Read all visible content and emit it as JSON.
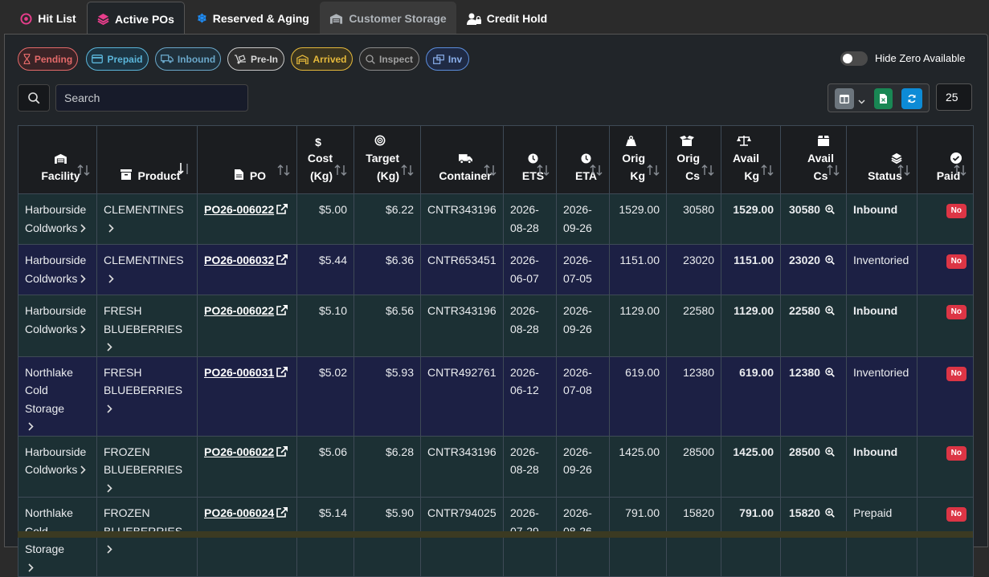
{
  "tabs": [
    {
      "label": "Hit List"
    },
    {
      "label": "Active POs"
    },
    {
      "label": "Reserved & Aging"
    },
    {
      "label": "Customer Storage"
    },
    {
      "label": "Credit Hold"
    }
  ],
  "filters": [
    {
      "label": "Pending",
      "color": "#e46a6a"
    },
    {
      "label": "Prepaid",
      "color": "#5bb5d9"
    },
    {
      "label": "Inbound",
      "color": "#6aa7c9"
    },
    {
      "label": "Pre-In",
      "color": "#c8c8c8"
    },
    {
      "label": "Arrived",
      "color": "#e5b93b"
    },
    {
      "label": "Inspect",
      "color": "#9a9a9a"
    },
    {
      "label": "Inv",
      "color": "#5b8ddc"
    }
  ],
  "hide_zero": {
    "label": "Hide Zero Available",
    "on": false
  },
  "search": {
    "placeholder": "Search"
  },
  "page_size": "25",
  "columns": [
    {
      "l1": "",
      "l2": "Facility"
    },
    {
      "l1": "",
      "l2": "Product"
    },
    {
      "l1": "",
      "l2": "PO"
    },
    {
      "l1": "Cost",
      "l2": "(Kg)"
    },
    {
      "l1": "Target",
      "l2": "(Kg)"
    },
    {
      "l1": "",
      "l2": "Container"
    },
    {
      "l1": "",
      "l2": "ETS"
    },
    {
      "l1": "",
      "l2": "ETA"
    },
    {
      "l1": "Orig",
      "l2": "Kg"
    },
    {
      "l1": "Orig",
      "l2": "Cs"
    },
    {
      "l1": "Avail",
      "l2": "Kg"
    },
    {
      "l1": "Avail",
      "l2": "Cs"
    },
    {
      "l1": "",
      "l2": "Status"
    },
    {
      "l1": "",
      "l2": "Paid"
    }
  ],
  "rows": [
    {
      "facility_a": "Harbourside",
      "facility_b": "Coldworks",
      "product_a": "CLEMENTINES",
      "product_b": "",
      "po": "PO26-006022",
      "cost": "$5.00",
      "target": "$6.22",
      "container": "CNTR343196",
      "ets_a": "2026-",
      "ets_b": "08-28",
      "eta_a": "2026-",
      "eta_b": "09-26",
      "orig_kg": "1529.00",
      "orig_cs": "30580",
      "avail_kg": "1529.00",
      "avail_cs": "30580",
      "status": "Inbound",
      "status_bold": true,
      "paid": "No"
    },
    {
      "facility_a": "Harbourside",
      "facility_b": "Coldworks",
      "product_a": "CLEMENTINES",
      "product_b": "",
      "po": "PO26-006032",
      "cost": "$5.44",
      "target": "$6.36",
      "container": "CNTR653451",
      "ets_a": "2026-",
      "ets_b": "06-07",
      "eta_a": "2026-",
      "eta_b": "07-05",
      "orig_kg": "1151.00",
      "orig_cs": "23020",
      "avail_kg": "1151.00",
      "avail_cs": "23020",
      "status": "Inventoried",
      "status_bold": false,
      "paid": "No"
    },
    {
      "facility_a": "Harbourside",
      "facility_b": "Coldworks",
      "product_a": "FRESH",
      "product_b": "BLUEBERRIES",
      "po": "PO26-006022",
      "cost": "$5.10",
      "target": "$6.56",
      "container": "CNTR343196",
      "ets_a": "2026-",
      "ets_b": "08-28",
      "eta_a": "2026-",
      "eta_b": "09-26",
      "orig_kg": "1129.00",
      "orig_cs": "22580",
      "avail_kg": "1129.00",
      "avail_cs": "22580",
      "status": "Inbound",
      "status_bold": true,
      "paid": "No"
    },
    {
      "facility_a": "Northlake",
      "facility_b": "Cold Storage",
      "product_a": "FRESH",
      "product_b": "BLUEBERRIES",
      "po": "PO26-006031",
      "cost": "$5.02",
      "target": "$5.93",
      "container": "CNTR492761",
      "ets_a": "2026-",
      "ets_b": "06-12",
      "eta_a": "2026-",
      "eta_b": "07-08",
      "orig_kg": "619.00",
      "orig_cs": "12380",
      "avail_kg": "619.00",
      "avail_cs": "12380",
      "status": "Inventoried",
      "status_bold": false,
      "paid": "No"
    },
    {
      "facility_a": "Harbourside",
      "facility_b": "Coldworks",
      "product_a": "FROZEN",
      "product_b": "BLUEBERRIES",
      "po": "PO26-006022",
      "cost": "$5.06",
      "target": "$6.28",
      "container": "CNTR343196",
      "ets_a": "2026-",
      "ets_b": "08-28",
      "eta_a": "2026-",
      "eta_b": "09-26",
      "orig_kg": "1425.00",
      "orig_cs": "28500",
      "avail_kg": "1425.00",
      "avail_cs": "28500",
      "status": "Inbound",
      "status_bold": true,
      "paid": "No"
    },
    {
      "facility_a": "Northlake",
      "facility_b": "Cold Storage",
      "product_a": "FROZEN",
      "product_b": "BLUEBERRIES",
      "po": "PO26-006024",
      "cost": "$5.14",
      "target": "$5.90",
      "container": "CNTR794025",
      "ets_a": "2026-",
      "ets_b": "07-29",
      "eta_a": "2026-",
      "eta_b": "08-26",
      "orig_kg": "791.00",
      "orig_cs": "15820",
      "avail_kg": "791.00",
      "avail_cs": "15820",
      "status": "Prepaid",
      "status_bold": false,
      "paid": "No"
    }
  ]
}
